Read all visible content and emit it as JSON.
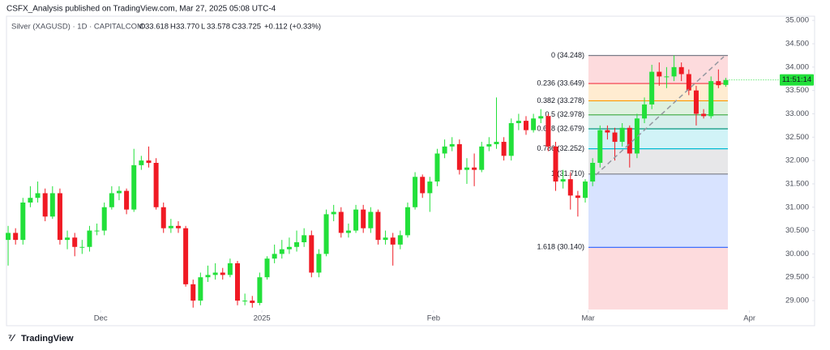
{
  "header": {
    "publisher": "CSFX_Analysis published on TradingView.com, Mar 27, 2025 05:08 UTC-4",
    "symbol": "Silver (XAGUSD) · 1D · CAPITALCOM",
    "ohlc": [
      "O",
      "33.618",
      "H",
      "33.770",
      "L",
      "33.578",
      "C",
      "33.725"
    ],
    "change": "+0.112 (+0.33%)",
    "countdown": "11:51:14"
  },
  "footer": {
    "brand": "TradingView"
  },
  "chart_data": {
    "type": "candlestick",
    "up_color": "#22e03a",
    "down_color": "#f01a24",
    "ylim": [
      28.81,
      35.09
    ],
    "yticks": [
      {
        "value": 35,
        "label": "35.000"
      },
      {
        "value": 34.5,
        "label": "34.500"
      },
      {
        "value": 34,
        "label": "34.000"
      },
      {
        "value": 33.5,
        "label": "33.500"
      },
      {
        "value": 33,
        "label": "33.000"
      },
      {
        "value": 32.5,
        "label": "32.500"
      },
      {
        "value": 32,
        "label": "32.000"
      },
      {
        "value": 31.5,
        "label": "31.500"
      },
      {
        "value": 31,
        "label": "31.000"
      },
      {
        "value": 30.5,
        "label": "30.500"
      },
      {
        "value": 30,
        "label": "30.000"
      },
      {
        "value": 29.5,
        "label": "29.500"
      },
      {
        "value": 29,
        "label": "29.000"
      }
    ],
    "xlim": [
      -1.1,
      109
    ],
    "xticks": [
      {
        "value": 12.5,
        "label": "Dec"
      },
      {
        "value": 34.3,
        "label": "2025"
      },
      {
        "value": 57.5,
        "label": "Feb"
      },
      {
        "value": 78.4,
        "label": "Mar"
      },
      {
        "value": 100.2,
        "label": "Apr"
      }
    ],
    "open": [
      30.3,
      30.45,
      30.3,
      31.1,
      31.2,
      31.3,
      30.8,
      31.3,
      30.3,
      30.35,
      30.15,
      30.15,
      30.5,
      30.5,
      31.0,
      31.3,
      31.35,
      30.95,
      31.9,
      32.0,
      31.95,
      31.0,
      30.55,
      30.6,
      30.55,
      29.35,
      29.0,
      29.5,
      29.55,
      29.6,
      29.55,
      29.8,
      29.0,
      29.0,
      28.95,
      29.5,
      29.9,
      30.0,
      30.1,
      30.15,
      30.25,
      30.4,
      29.6,
      30.0,
      30.85,
      30.9,
      30.45,
      30.5,
      30.95,
      30.55,
      30.9,
      30.3,
      30.35,
      30.2,
      30.4,
      31.0,
      31.65,
      31.3,
      31.55,
      32.15,
      32.3,
      32.35,
      31.8,
      31.85,
      31.8,
      32.3,
      32.35,
      32.4,
      32.1,
      32.8,
      32.85,
      32.65,
      32.9,
      32.95,
      32.3,
      31.55,
      31.6,
      31.25,
      31.2,
      31.55,
      31.95,
      32.65,
      32.6,
      32.4,
      32.7,
      32.15,
      32.9,
      33.2,
      33.9,
      33.8,
      33.8,
      34.0,
      33.85,
      33.5,
      33.0,
      32.95,
      33.7,
      33.618
    ],
    "high": [
      30.6,
      30.55,
      31.2,
      31.45,
      31.55,
      31.4,
      31.45,
      31.4,
      30.5,
      30.45,
      30.3,
      30.6,
      30.65,
      31.1,
      31.45,
      31.45,
      31.4,
      32.25,
      32.1,
      32.3,
      32.05,
      31.1,
      30.75,
      30.7,
      30.6,
      29.45,
      29.6,
      29.75,
      29.8,
      29.7,
      29.9,
      29.85,
      29.15,
      29.1,
      29.6,
      29.95,
      30.2,
      30.3,
      30.35,
      30.5,
      30.55,
      30.5,
      30.1,
      30.95,
      31.05,
      31.0,
      30.65,
      31.05,
      31.05,
      31.0,
      30.95,
      30.5,
      30.45,
      30.5,
      31.1,
      31.75,
      31.7,
      31.65,
      32.25,
      32.45,
      32.5,
      32.45,
      32.05,
      32.15,
      32.4,
      32.5,
      33.35,
      32.5,
      32.9,
      33.0,
      32.95,
      33.0,
      33.1,
      33.0,
      32.4,
      31.8,
      31.75,
      31.35,
      31.6,
      32.05,
      32.75,
      32.75,
      32.7,
      32.8,
      32.75,
      33.0,
      33.35,
      34.05,
      34.1,
      34.0,
      34.25,
      34.1,
      33.95,
      33.6,
      33.1,
      33.8,
      33.95,
      33.77
    ],
    "low": [
      29.75,
      30.2,
      30.2,
      31.0,
      31.1,
      30.7,
      30.75,
      30.2,
      30.1,
      29.95,
      30.0,
      30.05,
      30.4,
      30.4,
      30.95,
      31.15,
      30.85,
      30.9,
      31.8,
      31.85,
      30.95,
      30.45,
      30.45,
      30.45,
      29.3,
      28.85,
      28.9,
      29.4,
      29.45,
      29.45,
      29.5,
      28.9,
      28.9,
      28.85,
      28.9,
      29.45,
      29.8,
      29.9,
      30.0,
      30.05,
      30.15,
      29.5,
      29.5,
      29.95,
      30.7,
      30.35,
      30.35,
      30.45,
      30.45,
      30.45,
      30.2,
      30.2,
      29.75,
      30.1,
      30.35,
      30.95,
      31.2,
      30.9,
      31.45,
      32.05,
      32.2,
      31.7,
      31.5,
      31.45,
      31.75,
      32.2,
      32.25,
      32.0,
      32.0,
      32.65,
      32.55,
      32.6,
      32.8,
      32.2,
      31.35,
      31.4,
      30.95,
      30.8,
      31.1,
      31.45,
      31.85,
      32.45,
      32.0,
      32.3,
      31.85,
      32.05,
      32.8,
      33.1,
      33.6,
      33.55,
      33.7,
      33.7,
      33.4,
      32.75,
      32.9,
      32.9,
      33.55,
      33.578
    ],
    "close": [
      30.45,
      30.3,
      31.1,
      31.2,
      31.3,
      30.8,
      31.3,
      30.3,
      30.35,
      30.15,
      30.15,
      30.5,
      30.5,
      31.0,
      31.3,
      31.35,
      30.95,
      31.9,
      32.0,
      31.95,
      31.0,
      30.55,
      30.6,
      30.55,
      29.35,
      29.0,
      29.5,
      29.55,
      29.6,
      29.55,
      29.8,
      29.0,
      29.0,
      28.95,
      29.5,
      29.9,
      30.0,
      30.1,
      30.15,
      30.25,
      30.4,
      29.6,
      30.0,
      30.85,
      30.9,
      30.45,
      30.5,
      30.95,
      30.55,
      30.9,
      30.3,
      30.35,
      30.2,
      30.4,
      31.0,
      31.65,
      31.3,
      31.55,
      32.15,
      32.3,
      32.35,
      31.8,
      31.85,
      31.8,
      32.3,
      32.35,
      32.4,
      32.1,
      32.8,
      32.85,
      32.65,
      32.9,
      32.95,
      32.3,
      31.55,
      31.6,
      31.25,
      31.2,
      31.55,
      31.95,
      32.65,
      32.6,
      32.4,
      32.7,
      32.15,
      32.9,
      33.2,
      33.9,
      33.8,
      33.8,
      34.0,
      33.85,
      33.5,
      33.0,
      32.95,
      33.7,
      33.613,
      33.725
    ],
    "fib_levels": [
      {
        "price": 34.248,
        "label": "0 (34.248)",
        "color": "#787b86",
        "fill": "rgba(242,54,69,0.18)"
      },
      {
        "price": 33.649,
        "label": "0.236 (33.649)",
        "color": "#f23645",
        "fill": "rgba(255,152,0,0.18)"
      },
      {
        "price": 33.278,
        "label": "0.382 (33.278)",
        "color": "#ff9800",
        "fill": "rgba(76,175,80,0.18)"
      },
      {
        "price": 32.978,
        "label": "0.5 (32.978)",
        "color": "#4caf50",
        "fill": "rgba(8,153,129,0.16)"
      },
      {
        "price": 32.679,
        "label": "0.618 (32.679)",
        "color": "#089981",
        "fill": "rgba(0,188,212,0.18)"
      },
      {
        "price": 32.252,
        "label": "0.786 (32.252)",
        "color": "#00bcd4",
        "fill": "rgba(120,123,134,0.18)"
      },
      {
        "price": 31.71,
        "label": "1 (31.710)",
        "color": "#787b86",
        "fill": "rgba(41,98,255,0.18)"
      },
      {
        "price": 30.14,
        "label": "1.618 (30.140)",
        "color": "#2962ff",
        "fill": "rgba(242,54,69,0.18)"
      }
    ]
  }
}
